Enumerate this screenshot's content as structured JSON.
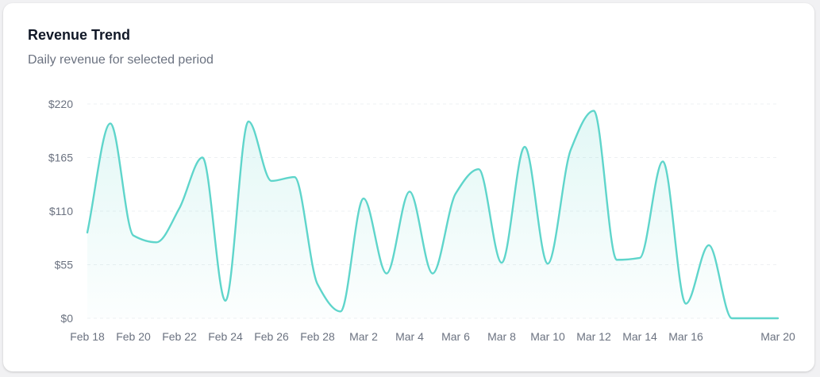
{
  "header": {
    "title": "Revenue Trend",
    "subtitle": "Daily revenue for selected period"
  },
  "colors": {
    "line": "#5fd5cb",
    "area": "#5fd5cb",
    "grid": "#eef0f3",
    "tick_text": "#6b7280"
  },
  "chart_data": {
    "type": "area",
    "title": "Revenue Trend",
    "subtitle": "Daily revenue for selected period",
    "xlabel": "",
    "ylabel": "",
    "ylim": [
      0,
      220
    ],
    "y_ticks": [
      0,
      55,
      110,
      165,
      220
    ],
    "y_tick_labels": [
      "$0",
      "$55",
      "$110",
      "$165",
      "$220"
    ],
    "x_tick_labels": [
      "Feb 18",
      "Feb 20",
      "Feb 22",
      "Feb 24",
      "Feb 26",
      "Feb 28",
      "Mar 2",
      "Mar 4",
      "Mar 6",
      "Mar 8",
      "Mar 10",
      "Mar 12",
      "Mar 14",
      "Mar 16",
      "Mar 20"
    ],
    "grid": true,
    "legend": "none",
    "x": [
      "Feb 18",
      "Feb 19",
      "Feb 20",
      "Feb 21",
      "Feb 22",
      "Feb 23",
      "Feb 24",
      "Feb 25",
      "Feb 26",
      "Feb 27",
      "Feb 28",
      "Mar 1",
      "Mar 2",
      "Mar 3",
      "Mar 4",
      "Mar 5",
      "Mar 6",
      "Mar 7",
      "Mar 8",
      "Mar 9",
      "Mar 10",
      "Mar 11",
      "Mar 12",
      "Mar 13",
      "Mar 14",
      "Mar 15",
      "Mar 16",
      "Mar 17",
      "Mar 18",
      "Mar 19",
      "Mar 20"
    ],
    "series": [
      {
        "values": [
          88,
          200,
          85,
          78,
          113,
          165,
          18,
          202,
          141,
          145,
          35,
          7,
          123,
          46,
          130,
          46,
          128,
          153,
          57,
          176,
          56,
          173,
          213,
          60,
          62,
          161,
          15,
          75,
          0,
          0,
          0
        ]
      }
    ]
  }
}
